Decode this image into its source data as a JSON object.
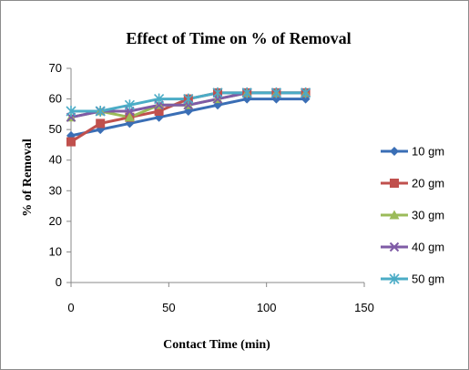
{
  "chart_data": {
    "type": "line",
    "title": "Effect of Time on % of Removal",
    "xlabel": "Contact Time (min)",
    "ylabel": "% of Removal",
    "xlim": [
      0,
      150
    ],
    "ylim": [
      0,
      70
    ],
    "xticks": [
      0,
      50,
      100,
      150
    ],
    "yticks": [
      0,
      10,
      20,
      30,
      40,
      50,
      60,
      70
    ],
    "grid": false,
    "legend_position": "right",
    "series": [
      {
        "name": "10 gm",
        "color": "#3a6eb5",
        "marker": "diamond",
        "x": [
          0,
          15,
          30,
          45,
          60,
          75,
          90,
          105,
          120
        ],
        "y": [
          48,
          50,
          52,
          54,
          56,
          58,
          60,
          60,
          60
        ]
      },
      {
        "name": "20 gm",
        "color": "#c0504d",
        "marker": "square",
        "x": [
          0,
          15,
          30,
          45,
          60,
          75,
          90,
          105,
          120
        ],
        "y": [
          46,
          52,
          54,
          56,
          60,
          62,
          62,
          62,
          62
        ]
      },
      {
        "name": "30 gm",
        "color": "#9bbb59",
        "marker": "triangle",
        "x": [
          0,
          15,
          30,
          45,
          60,
          75,
          90,
          105,
          120
        ],
        "y": [
          54,
          56,
          54,
          58,
          58,
          60,
          62,
          62,
          62
        ]
      },
      {
        "name": "40 gm",
        "color": "#7f5ba6",
        "marker": "x",
        "x": [
          0,
          15,
          30,
          45,
          60,
          75,
          90,
          105,
          120
        ],
        "y": [
          54,
          56,
          56,
          58,
          58,
          60,
          62,
          62,
          62
        ]
      },
      {
        "name": "50 gm",
        "color": "#4bacc6",
        "marker": "star",
        "x": [
          0,
          15,
          30,
          45,
          60,
          75,
          90,
          105,
          120
        ],
        "y": [
          56,
          56,
          58,
          60,
          60,
          62,
          62,
          62,
          62
        ]
      }
    ]
  }
}
